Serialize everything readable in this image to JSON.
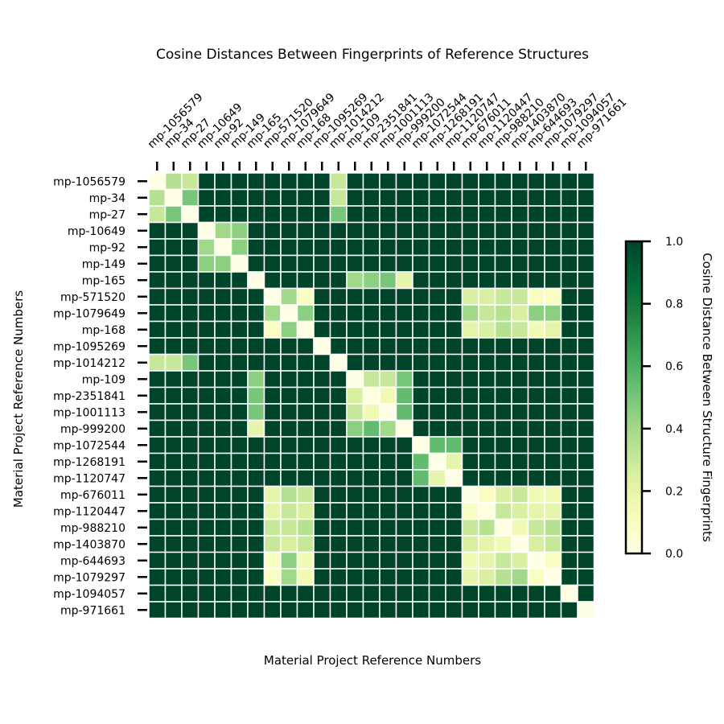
{
  "chart_data": {
    "type": "heatmap",
    "title": "Cosine Distances Between Fingerprints of Reference Structures",
    "xlabel": "Material Project Reference Numbers",
    "ylabel": "Material Project Reference Numbers",
    "colorbar_label": "Cosine Distance Between Structure Fingerprints",
    "colormap": "YlGn",
    "vmin": 0.0,
    "vmax": 1.0,
    "colorbar_ticks": [
      "0.0",
      "0.2",
      "0.4",
      "0.6",
      "0.8",
      "1.0"
    ],
    "grid_line_color": "#ffffff",
    "x_tick_position": "top",
    "legend_placement": "right",
    "labels": [
      "mp-1056579",
      "mp-34",
      "mp-27",
      "mp-10649",
      "mp-92",
      "mp-149",
      "mp-165",
      "mp-571520",
      "mp-1079649",
      "mp-168",
      "mp-1095269",
      "mp-1014212",
      "mp-109",
      "mp-2351841",
      "mp-1001113",
      "mp-999200",
      "mp-1072544",
      "mp-1268191",
      "mp-1120747",
      "mp-676011",
      "mp-1120447",
      "mp-988210",
      "mp-1403870",
      "mp-644693",
      "mp-1079297",
      "mp-1094057",
      "mp-971661"
    ],
    "values": [
      [
        0.0,
        0.35,
        0.3,
        1,
        1,
        1,
        1,
        1,
        1,
        1,
        1,
        0.3,
        1,
        1,
        1,
        1,
        1,
        1,
        1,
        1,
        1,
        1,
        1,
        1,
        1,
        1,
        1
      ],
      [
        0.35,
        0.0,
        0.5,
        1,
        1,
        1,
        1,
        1,
        1,
        1,
        1,
        0.3,
        1,
        1,
        1,
        1,
        1,
        1,
        1,
        1,
        1,
        1,
        1,
        1,
        1,
        1,
        1
      ],
      [
        0.3,
        0.5,
        0.0,
        1,
        1,
        1,
        1,
        1,
        1,
        1,
        1,
        0.5,
        1,
        1,
        1,
        1,
        1,
        1,
        1,
        1,
        1,
        1,
        1,
        1,
        1,
        1,
        1
      ],
      [
        1,
        1,
        1,
        0.0,
        0.4,
        0.45,
        1,
        1,
        1,
        1,
        1,
        1,
        1,
        1,
        1,
        1,
        1,
        1,
        1,
        1,
        1,
        1,
        1,
        1,
        1,
        1,
        1
      ],
      [
        1,
        1,
        1,
        0.4,
        0.0,
        0.45,
        1,
        1,
        1,
        1,
        1,
        1,
        1,
        1,
        1,
        1,
        1,
        1,
        1,
        1,
        1,
        1,
        1,
        1,
        1,
        1,
        1
      ],
      [
        1,
        1,
        1,
        0.45,
        0.45,
        0.0,
        1,
        1,
        1,
        1,
        1,
        1,
        1,
        1,
        1,
        1,
        1,
        1,
        1,
        1,
        1,
        1,
        1,
        1,
        1,
        1,
        1
      ],
      [
        1,
        1,
        1,
        1,
        1,
        1,
        0.0,
        1,
        1,
        1,
        1,
        1,
        0.4,
        0.45,
        0.5,
        0.2,
        1,
        1,
        1,
        1,
        1,
        1,
        1,
        1,
        1,
        1,
        1
      ],
      [
        1,
        1,
        1,
        1,
        1,
        1,
        1,
        0.0,
        0.4,
        0.1,
        1,
        1,
        1,
        1,
        1,
        1,
        1,
        1,
        1,
        0.25,
        0.25,
        0.3,
        0.3,
        0.1,
        0.1,
        1,
        1
      ],
      [
        1,
        1,
        1,
        1,
        1,
        1,
        1,
        0.4,
        0.0,
        0.45,
        1,
        1,
        1,
        1,
        1,
        1,
        1,
        1,
        1,
        0.4,
        0.3,
        0.35,
        0.25,
        0.45,
        0.45,
        1,
        1
      ],
      [
        1,
        1,
        1,
        1,
        1,
        1,
        1,
        0.1,
        0.45,
        0.0,
        1,
        1,
        1,
        1,
        1,
        1,
        1,
        1,
        1,
        0.2,
        0.25,
        0.35,
        0.3,
        0.15,
        0.2,
        1,
        1
      ],
      [
        1,
        1,
        1,
        1,
        1,
        1,
        1,
        1,
        1,
        1,
        0.0,
        1,
        1,
        1,
        1,
        1,
        1,
        1,
        1,
        1,
        1,
        1,
        1,
        1,
        1,
        1,
        1
      ],
      [
        0.3,
        0.3,
        0.5,
        1,
        1,
        1,
        1,
        1,
        1,
        1,
        1,
        0.0,
        1,
        1,
        1,
        1,
        1,
        1,
        1,
        1,
        1,
        1,
        1,
        1,
        1,
        1,
        1
      ],
      [
        1,
        1,
        1,
        1,
        1,
        1,
        0.45,
        1,
        1,
        1,
        1,
        1,
        0.0,
        0.3,
        0.3,
        0.5,
        1,
        1,
        1,
        1,
        1,
        1,
        1,
        1,
        1,
        1,
        1
      ],
      [
        1,
        1,
        1,
        1,
        1,
        1,
        0.5,
        1,
        1,
        1,
        1,
        1,
        0.25,
        0.02,
        0.15,
        0.55,
        1,
        1,
        1,
        1,
        1,
        1,
        1,
        1,
        1,
        1,
        1
      ],
      [
        1,
        1,
        1,
        1,
        1,
        1,
        0.5,
        1,
        1,
        1,
        1,
        1,
        0.3,
        0.15,
        0.0,
        0.55,
        1,
        1,
        1,
        1,
        1,
        1,
        1,
        1,
        1,
        1,
        1
      ],
      [
        1,
        1,
        1,
        1,
        1,
        1,
        0.2,
        1,
        1,
        1,
        1,
        1,
        0.45,
        0.55,
        0.4,
        0.0,
        1,
        1,
        1,
        1,
        1,
        1,
        1,
        1,
        1,
        1,
        1
      ],
      [
        1,
        1,
        1,
        1,
        1,
        1,
        1,
        1,
        1,
        1,
        1,
        1,
        1,
        1,
        1,
        1,
        0.0,
        0.55,
        0.55,
        1,
        1,
        1,
        1,
        1,
        1,
        1,
        1
      ],
      [
        1,
        1,
        1,
        1,
        1,
        1,
        1,
        1,
        1,
        1,
        1,
        1,
        1,
        1,
        1,
        1,
        0.55,
        0.0,
        0.2,
        1,
        1,
        1,
        1,
        1,
        1,
        1,
        1
      ],
      [
        1,
        1,
        1,
        1,
        1,
        1,
        1,
        1,
        1,
        1,
        1,
        1,
        1,
        1,
        1,
        1,
        0.55,
        0.2,
        0.0,
        1,
        1,
        1,
        1,
        1,
        1,
        1,
        1
      ],
      [
        1,
        1,
        1,
        1,
        1,
        1,
        1,
        0.2,
        0.35,
        0.3,
        1,
        1,
        1,
        1,
        1,
        1,
        1,
        1,
        1,
        0.0,
        0.1,
        0.25,
        0.3,
        0.15,
        0.15,
        1,
        1
      ],
      [
        1,
        1,
        1,
        1,
        1,
        1,
        1,
        0.2,
        0.3,
        0.25,
        1,
        1,
        1,
        1,
        1,
        1,
        1,
        1,
        1,
        0.1,
        0.02,
        0.3,
        0.25,
        0.2,
        0.2,
        1,
        1
      ],
      [
        1,
        1,
        1,
        1,
        1,
        1,
        1,
        0.3,
        0.3,
        0.35,
        1,
        1,
        1,
        1,
        1,
        1,
        1,
        1,
        1,
        0.3,
        0.35,
        0.0,
        0.15,
        0.3,
        0.35,
        1,
        1
      ],
      [
        1,
        1,
        1,
        1,
        1,
        1,
        1,
        0.3,
        0.25,
        0.3,
        1,
        1,
        1,
        1,
        1,
        1,
        1,
        1,
        1,
        0.25,
        0.2,
        0.15,
        0.0,
        0.25,
        0.3,
        1,
        1
      ],
      [
        1,
        1,
        1,
        1,
        1,
        1,
        1,
        0.1,
        0.45,
        0.15,
        1,
        1,
        1,
        1,
        1,
        1,
        1,
        1,
        1,
        0.15,
        0.2,
        0.3,
        0.25,
        0.0,
        0.1,
        1,
        1
      ],
      [
        1,
        1,
        1,
        1,
        1,
        1,
        1,
        0.1,
        0.4,
        0.15,
        1,
        1,
        1,
        1,
        1,
        1,
        1,
        1,
        1,
        0.2,
        0.25,
        0.35,
        0.4,
        0.1,
        0.0,
        1,
        1
      ],
      [
        1,
        1,
        1,
        1,
        1,
        1,
        1,
        1,
        1,
        1,
        1,
        1,
        1,
        1,
        1,
        1,
        1,
        1,
        1,
        1,
        1,
        1,
        1,
        1,
        1,
        0.0,
        1
      ],
      [
        1,
        1,
        1,
        1,
        1,
        1,
        1,
        1,
        1,
        1,
        1,
        1,
        1,
        1,
        1,
        1,
        1,
        1,
        1,
        1,
        1,
        1,
        1,
        1,
        1,
        1,
        0.0
      ]
    ]
  }
}
